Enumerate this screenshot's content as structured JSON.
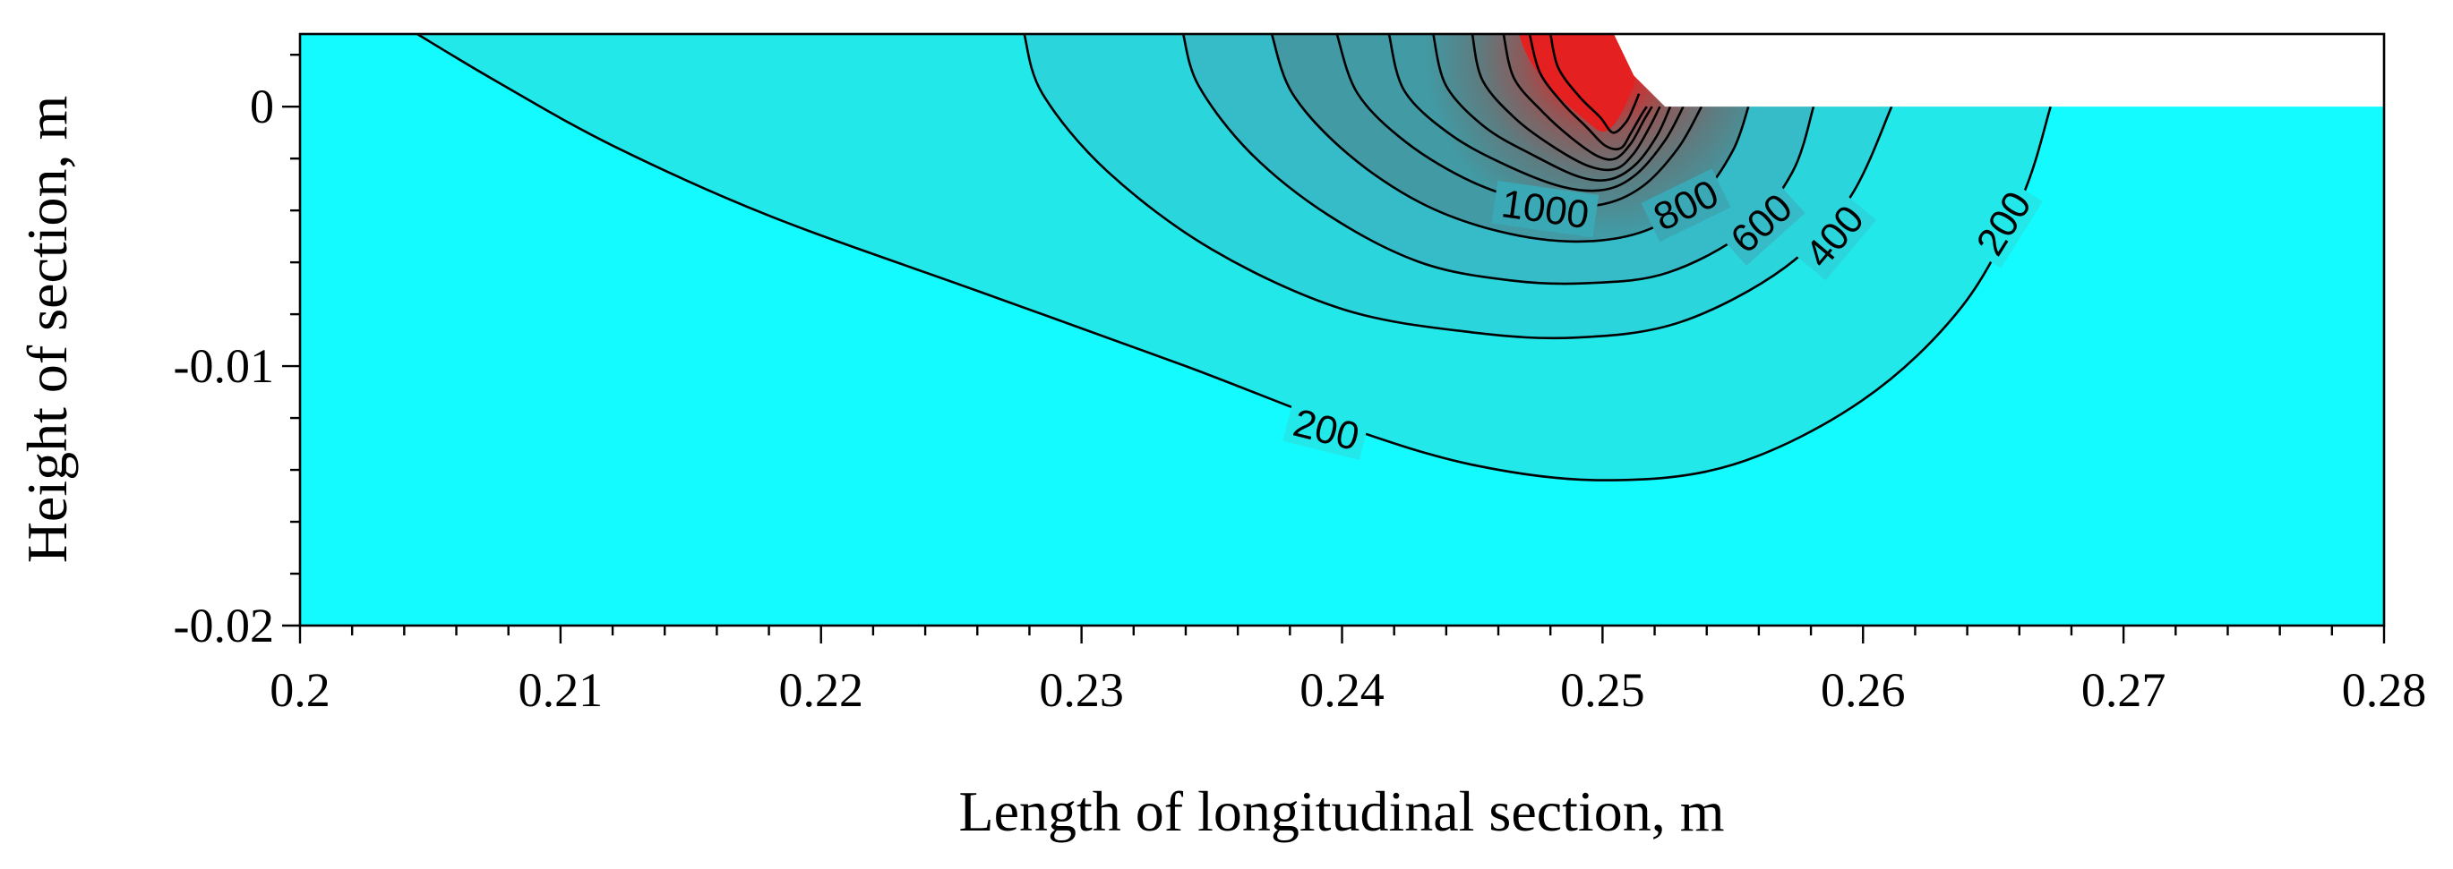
{
  "chart_data": {
    "type": "contour",
    "title": "",
    "xlabel": "Length of longitudinal section, m",
    "ylabel": "Height of section, m",
    "xlim": [
      0.2,
      0.28
    ],
    "ylim": [
      -0.02,
      0.0028
    ],
    "x_ticks": [
      0.2,
      0.21,
      0.22,
      0.23,
      0.24,
      0.25,
      0.26,
      0.27,
      0.28
    ],
    "x_tick_labels": [
      "0.2",
      "0.21",
      "0.22",
      "0.23",
      "0.24",
      "0.25",
      "0.26",
      "0.27",
      "0.28"
    ],
    "y_ticks": [
      0,
      -0.01,
      -0.02
    ],
    "y_tick_labels": [
      "0",
      "-0.01",
      "-0.02"
    ],
    "x_minor_step": 0.002,
    "y_minor_step": 0.002,
    "colors": {
      "background": "#14fbff",
      "level_200": "#22e8ea",
      "level_400": "#2ad5dc",
      "level_600": "#36bcc8",
      "hot": "#e42020",
      "void": "#ffffff"
    },
    "surface": {
      "reinforcement_top_y": 0.0028,
      "plate_top_y": 0,
      "reinforcement_end_x": 0.2524
    },
    "contours": [
      {
        "level": 200,
        "label": "200",
        "x": [
          0.2045,
          0.2075,
          0.212,
          0.218,
          0.226,
          0.234,
          0.24,
          0.245,
          0.25,
          0.255,
          0.26,
          0.2638,
          0.2661,
          0.2672
        ],
        "y": [
          0.0028,
          0.001,
          -0.0015,
          -0.0042,
          -0.0071,
          -0.01,
          -0.0123,
          -0.0138,
          -0.0144,
          -0.0138,
          -0.0113,
          -0.0077,
          -0.0035,
          0.0
        ]
      },
      {
        "level": 400,
        "label": "400",
        "x": [
          0.2278,
          0.2285,
          0.231,
          0.235,
          0.24,
          0.245,
          0.249,
          0.253,
          0.257,
          0.2595,
          0.2611
        ],
        "y": [
          0.0028,
          0.0005,
          -0.0025,
          -0.0055,
          -0.0078,
          -0.0087,
          -0.0089,
          -0.0083,
          -0.0062,
          -0.0035,
          0.0
        ]
      },
      {
        "level": 600,
        "label": "600",
        "x": [
          0.2339,
          0.2345,
          0.2365,
          0.2395,
          0.243,
          0.2465,
          0.2495,
          0.2525,
          0.2555,
          0.2573,
          0.2581
        ],
        "y": [
          0.0028,
          0.0008,
          -0.0018,
          -0.0042,
          -0.006,
          -0.0067,
          -0.0068,
          -0.0064,
          -0.0048,
          -0.0025,
          0.0
        ]
      },
      {
        "level": 800,
        "label": "800",
        "x": [
          0.2373,
          0.2381,
          0.2402,
          0.243,
          0.246,
          0.249,
          0.2516,
          0.2537,
          0.255,
          0.2556
        ],
        "y": [
          0.0028,
          0.0005,
          -0.0018,
          -0.0037,
          -0.0048,
          -0.0052,
          -0.0048,
          -0.0035,
          -0.0017,
          0.0
        ]
      },
      {
        "level": 1000,
        "label": "1000",
        "x": [
          0.2398,
          0.2406,
          0.2425,
          0.245,
          0.2475,
          0.2498,
          0.2515,
          0.2529,
          0.2538
        ],
        "y": [
          0.0028,
          0.0005,
          -0.0014,
          -0.0029,
          -0.0037,
          -0.0038,
          -0.0031,
          -0.0016,
          0.0
        ]
      },
      {
        "level": 1200,
        "label": "",
        "x": [
          0.2418,
          0.2424,
          0.2442,
          0.2464,
          0.2485,
          0.2501,
          0.2513,
          0.2524,
          0.2531
        ],
        "y": [
          0.0028,
          0.0006,
          -0.0011,
          -0.0023,
          -0.0031,
          -0.0032,
          -0.0026,
          -0.0013,
          0.0
        ]
      },
      {
        "level": 1400,
        "label": "",
        "x": [
          0.2435,
          0.244,
          0.2455,
          0.2474,
          0.2491,
          0.2503,
          0.2513,
          0.2521,
          0.2526
        ],
        "y": [
          0.0028,
          0.0008,
          -0.0008,
          -0.0019,
          -0.0027,
          -0.0028,
          -0.0022,
          -0.0011,
          0.0
        ]
      },
      {
        "level": 1600,
        "label": "",
        "x": [
          0.245,
          0.2454,
          0.2467,
          0.2482,
          0.2495,
          0.2505,
          0.2512,
          0.2518,
          0.2522
        ],
        "y": [
          0.0028,
          0.001,
          -0.0005,
          -0.0016,
          -0.0023,
          -0.0024,
          -0.0018,
          -0.0008,
          0.0
        ]
      },
      {
        "level": 1800,
        "label": "",
        "x": [
          0.2462,
          0.2466,
          0.2477,
          0.2488,
          0.2498,
          0.2505,
          0.2511,
          0.2516,
          0.2519
        ],
        "y": [
          0.0028,
          0.0011,
          -0.0002,
          -0.0012,
          -0.0019,
          -0.002,
          -0.0014,
          -0.0005,
          0.0
        ]
      },
      {
        "level": 2000,
        "label": "",
        "x": [
          0.2472,
          0.2476,
          0.2485,
          0.2494,
          0.2501,
          0.2507,
          0.2511,
          0.2515,
          0.2517
        ],
        "y": [
          0.0028,
          0.0013,
          0.0001,
          -0.0008,
          -0.0015,
          -0.0016,
          -0.001,
          -0.0003,
          0.0
        ]
      },
      {
        "level": 2200,
        "label": "",
        "x": [
          0.248,
          0.2483,
          0.2491,
          0.2499,
          0.2504,
          0.2509,
          0.2512,
          0.2514
        ],
        "y": [
          0.0028,
          0.0015,
          0.0004,
          -0.0004,
          -0.001,
          -0.0006,
          0.0,
          0.0005
        ]
      }
    ],
    "label_positions": [
      {
        "label": "200",
        "x": 0.2394,
        "y": -0.01245,
        "angle": 14
      },
      {
        "label": "1000",
        "x": 0.2478,
        "y": -0.00395,
        "angle": 8
      },
      {
        "label": "800",
        "x": 0.2532,
        "y": -0.0038,
        "angle": -26
      },
      {
        "label": "600",
        "x": 0.2561,
        "y": -0.0045,
        "angle": -42
      },
      {
        "label": "400",
        "x": 0.2589,
        "y": -0.005,
        "angle": -50
      },
      {
        "label": "200",
        "x": 0.2654,
        "y": -0.0045,
        "angle": -58
      }
    ]
  }
}
